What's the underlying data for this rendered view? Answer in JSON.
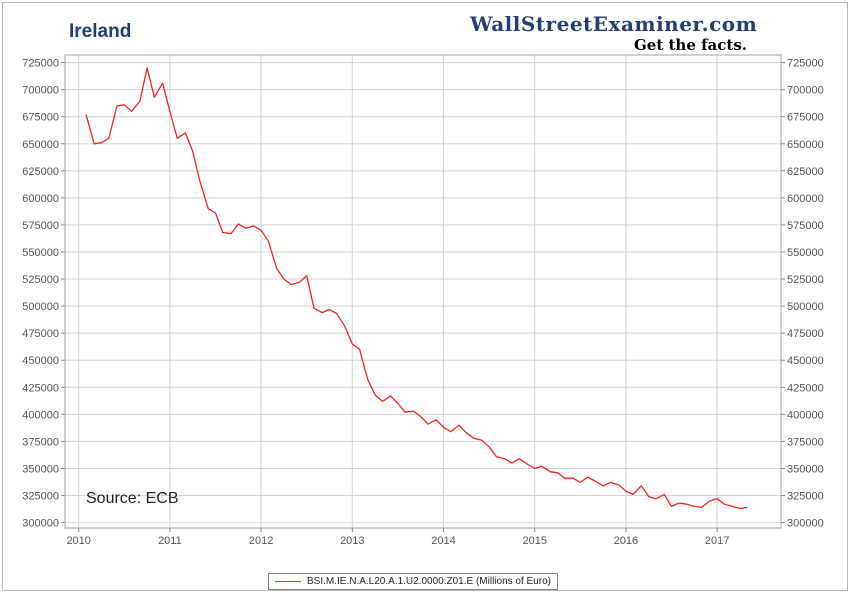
{
  "header": {
    "title": "Ireland",
    "brand_name": "WallStreetExaminer.com",
    "brand_tagline": "Get the facts."
  },
  "annotation": {
    "source": "Source: ECB"
  },
  "legend": {
    "series_label": "BSI.M.IE.N.A.L20.A.1.U2.0000.Z01.E (Millions of Euro)"
  },
  "colors": {
    "series": "#ff2020",
    "grid": "#d6d6d6",
    "title": "#1f3f74"
  },
  "chart_data": {
    "type": "line",
    "title": "Ireland",
    "xlabel": "",
    "ylabel": "",
    "xlim": [
      2009.85,
      2017.7
    ],
    "ylim": [
      295000,
      732000
    ],
    "grid": true,
    "legend_position": "bottom",
    "x_ticks": [
      2010,
      2011,
      2012,
      2013,
      2014,
      2015,
      2016,
      2017
    ],
    "y_ticks": [
      300000,
      325000,
      350000,
      375000,
      400000,
      425000,
      450000,
      475000,
      500000,
      525000,
      550000,
      575000,
      600000,
      625000,
      650000,
      675000,
      700000,
      725000
    ],
    "series": [
      {
        "name": "BSI.M.IE.N.A.L20.A.1.U2.0000.Z01.E (Millions of Euro)",
        "x": [
          2010.08,
          2010.17,
          2010.25,
          2010.33,
          2010.42,
          2010.5,
          2010.58,
          2010.67,
          2010.75,
          2010.83,
          2010.92,
          2011.0,
          2011.08,
          2011.17,
          2011.25,
          2011.33,
          2011.42,
          2011.5,
          2011.58,
          2011.67,
          2011.75,
          2011.83,
          2011.92,
          2012.0,
          2012.08,
          2012.17,
          2012.25,
          2012.33,
          2012.42,
          2012.5,
          2012.58,
          2012.67,
          2012.75,
          2012.83,
          2012.92,
          2013.0,
          2013.08,
          2013.17,
          2013.25,
          2013.33,
          2013.42,
          2013.5,
          2013.58,
          2013.67,
          2013.75,
          2013.83,
          2013.92,
          2014.0,
          2014.08,
          2014.17,
          2014.25,
          2014.33,
          2014.42,
          2014.5,
          2014.58,
          2014.67,
          2014.75,
          2014.83,
          2014.92,
          2015.0,
          2015.08,
          2015.17,
          2015.25,
          2015.33,
          2015.42,
          2015.5,
          2015.58,
          2015.67,
          2015.75,
          2015.83,
          2015.92,
          2016.0,
          2016.08,
          2016.17,
          2016.25,
          2016.33,
          2016.42,
          2016.5,
          2016.58,
          2016.67,
          2016.75,
          2016.83,
          2016.92,
          2017.0,
          2017.08,
          2017.17,
          2017.25,
          2017.33
        ],
        "y": [
          677000,
          650000,
          651000,
          655000,
          685000,
          686000,
          680000,
          689000,
          720000,
          693000,
          706000,
          680000,
          655000,
          660000,
          643000,
          615000,
          590000,
          586000,
          568000,
          567000,
          576000,
          572000,
          574000,
          570000,
          560000,
          535000,
          525000,
          520000,
          522000,
          528000,
          498000,
          494000,
          497000,
          493000,
          481000,
          465000,
          460000,
          432000,
          418000,
          412000,
          417000,
          410000,
          402000,
          403000,
          398000,
          391000,
          395000,
          388000,
          384000,
          390000,
          383000,
          378000,
          376000,
          370000,
          361000,
          359000,
          355000,
          359000,
          354000,
          350000,
          352000,
          347000,
          346000,
          341000,
          341000,
          337000,
          342000,
          338000,
          334000,
          337000,
          335000,
          329000,
          326000,
          334000,
          324000,
          322000,
          326000,
          315000,
          318000,
          317000,
          315000,
          314000,
          320000,
          322000,
          317000,
          315000,
          313000,
          314000
        ]
      }
    ]
  }
}
